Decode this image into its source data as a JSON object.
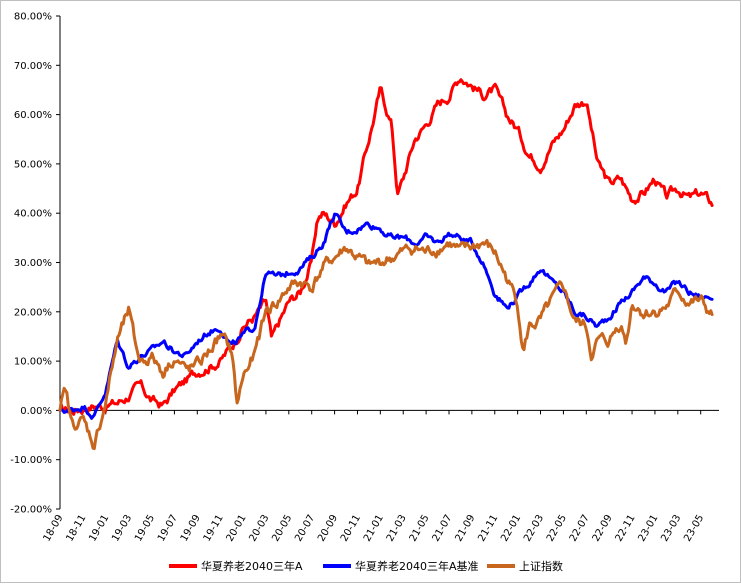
{
  "chart_data": {
    "type": "line",
    "title": "",
    "xlabel": "",
    "ylabel": "",
    "ylim": [
      -20,
      80
    ],
    "y_ticks": [
      "-20.00%",
      "-10.00%",
      "0.00%",
      "10.00%",
      "20.00%",
      "30.00%",
      "40.00%",
      "50.00%",
      "60.00%",
      "70.00%",
      "80.00%"
    ],
    "x_ticks": [
      "18-09",
      "18-11",
      "19-01",
      "19-03",
      "19-05",
      "19-07",
      "19-09",
      "19-11",
      "20-01",
      "20-03",
      "20-05",
      "20-07",
      "20-09",
      "20-11",
      "21-01",
      "21-03",
      "21-05",
      "21-07",
      "21-09",
      "21-11",
      "22-01",
      "22-03",
      "22-05",
      "22-07",
      "22-09",
      "22-11",
      "23-01",
      "23-03",
      "23-05"
    ],
    "x_months": [
      0,
      2,
      4,
      6,
      8,
      10,
      12,
      14,
      16,
      18,
      20,
      22,
      24,
      26,
      28,
      30,
      32,
      34,
      36,
      38,
      40,
      42,
      44,
      46,
      48,
      50,
      52,
      54,
      56
    ],
    "x_range": [
      0,
      57.6
    ],
    "legend_position": "bottom",
    "series": [
      {
        "name": "华夏养老2040三年A",
        "color": "#ff0000",
        "x": [
          0,
          1,
          2,
          3,
          4,
          5,
          6,
          7,
          8,
          9,
          10,
          11,
          12,
          13,
          14,
          15,
          16,
          17,
          18,
          18.5,
          19,
          20,
          21,
          22,
          22.5,
          23,
          24,
          25,
          26,
          27,
          28,
          29,
          29.5,
          30,
          31,
          32,
          33,
          34,
          35,
          36,
          37,
          38,
          39,
          40,
          41,
          42,
          43,
          44,
          45,
          46,
          47,
          48,
          49,
          50,
          51,
          52,
          53,
          54,
          55,
          56,
          57
        ],
        "values": [
          0,
          0,
          0.5,
          1,
          1,
          1.5,
          3,
          5,
          2,
          1,
          4,
          6,
          8,
          9,
          10,
          13,
          17,
          19,
          22,
          14,
          17,
          22,
          24,
          30,
          39,
          40,
          38,
          42,
          45,
          55,
          65,
          58,
          44,
          47,
          55,
          58,
          62,
          64,
          68,
          66,
          64,
          65,
          60,
          57,
          52,
          50,
          54,
          57,
          62,
          63,
          50,
          46,
          47,
          43,
          44,
          47,
          43,
          45,
          43,
          44,
          42
        ],
        "noise": 1.6
      },
      {
        "name": "华夏养老2040三年A基准",
        "color": "#0000ff",
        "x": [
          0,
          1,
          2,
          3,
          4,
          5,
          6,
          7,
          8,
          9,
          10,
          11,
          12,
          13,
          14,
          15,
          16,
          17,
          18,
          19,
          20,
          21,
          22,
          23,
          24,
          25,
          26,
          27,
          28,
          29,
          30,
          31,
          32,
          33,
          34,
          35,
          36,
          37,
          38,
          39,
          40,
          41,
          42,
          43,
          44,
          45,
          46,
          47,
          48,
          49,
          50,
          51,
          52,
          53,
          54,
          55,
          56,
          57
        ],
        "values": [
          0,
          0,
          1,
          -1,
          4,
          14,
          9,
          11,
          12,
          14,
          12,
          11,
          14,
          16,
          17,
          13,
          15,
          17,
          28,
          27,
          28,
          29,
          31,
          34,
          40,
          36,
          37,
          38,
          37,
          35,
          35,
          34,
          35,
          34,
          36,
          35,
          34,
          30,
          24,
          21,
          23,
          26,
          29,
          26,
          24,
          20,
          19,
          17,
          19,
          22,
          24,
          27,
          26,
          24,
          26,
          24,
          23,
          23
        ],
        "noise": 1.1
      },
      {
        "name": "上证指数",
        "color": "#c8661e",
        "x": [
          0,
          0.5,
          1,
          2,
          3,
          4,
          5,
          6,
          6.5,
          7,
          8,
          9,
          10,
          11,
          12,
          13,
          14,
          15,
          15.5,
          16,
          17,
          18,
          19,
          20,
          21,
          22,
          23,
          24,
          25,
          26,
          27,
          28,
          29,
          30,
          31,
          32,
          33,
          34,
          35,
          36,
          37,
          38,
          39,
          40,
          40.5,
          41,
          42,
          43,
          44,
          45,
          46,
          46.5,
          47,
          48,
          49,
          49.5,
          50,
          51,
          52,
          53,
          54,
          55,
          56,
          57
        ],
        "values": [
          0,
          4,
          -3,
          -2,
          -7,
          2,
          14,
          20,
          14,
          10,
          11,
          8,
          11,
          8,
          9,
          12,
          15,
          12,
          1,
          7,
          11,
          20,
          22,
          25,
          26,
          25,
          29,
          31,
          33,
          31,
          29,
          30,
          31,
          32,
          33,
          32,
          33,
          34,
          32,
          33,
          34,
          32,
          27,
          22,
          12,
          17,
          18,
          22,
          25,
          18,
          17,
          11,
          14,
          14,
          18,
          14,
          22,
          20,
          20,
          21,
          24,
          22,
          22,
          19
        ],
        "noise": 2.0
      }
    ]
  }
}
